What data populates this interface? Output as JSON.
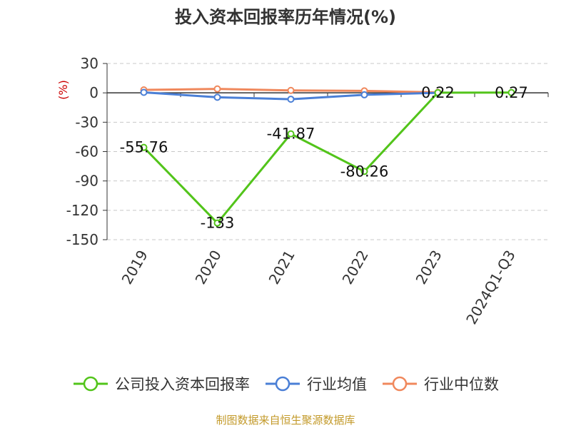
{
  "title": "投入资本回报率历年情况(%)",
  "source": "制图数据来自恒生聚源数据库",
  "colors": {
    "company": "#52c41a",
    "industry_avg": "#4a7fd6",
    "industry_median": "#f0885c",
    "unit_label": "#cc0000",
    "grid": "#c8c8c8",
    "axis": "#333333",
    "source": "#c39a2a"
  },
  "chart_data": {
    "type": "line",
    "title": "投入资本回报率历年情况(%)",
    "unit_label": "(%)",
    "categories": [
      "2019",
      "2020",
      "2021",
      "2022",
      "2023",
      "2024Q1-Q3"
    ],
    "ylim": [
      -150,
      30
    ],
    "yticks": [
      30,
      0,
      -30,
      -60,
      -90,
      -120,
      -150
    ],
    "grid": true,
    "legend_position": "bottom",
    "series": [
      {
        "name": "公司投入资本回报率",
        "values": [
          -55.76,
          -133,
          -41.87,
          -80.26,
          0.22,
          0.27
        ],
        "labels": [
          "-55.76",
          "-133",
          "-41.87",
          "-80.26",
          "0.22",
          "0.27"
        ]
      },
      {
        "name": "行业均值",
        "values": [
          0.5,
          -4.5,
          -6.5,
          -2,
          0,
          null
        ]
      },
      {
        "name": "行业中位数",
        "values": [
          3,
          4,
          2.5,
          2,
          0.5,
          null
        ]
      }
    ]
  }
}
